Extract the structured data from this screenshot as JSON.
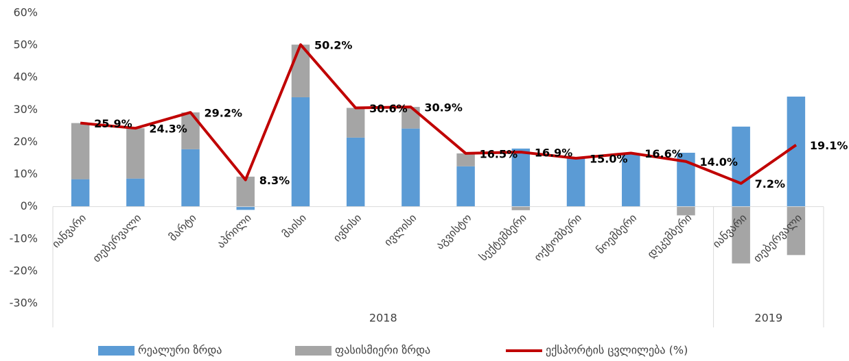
{
  "chart_data": {
    "type": "bar",
    "groups": [
      {
        "label": "2018",
        "categories": [
          "იანვარი",
          "თებერვალი",
          "მარტი",
          "აპრილი",
          "მაისი",
          "ივნისი",
          "ივლისი",
          "აგვისტო",
          "სექტემბერი",
          "ოქტომბერი",
          "ნოემბერი",
          "დეკემბერი"
        ]
      },
      {
        "label": "2019",
        "categories": [
          "იანვარი",
          "თებერვალი"
        ]
      }
    ],
    "series": [
      {
        "name": "რეალური ზრდა",
        "type": "bar",
        "color": "#5b9bd5",
        "values": [
          8.5,
          8.7,
          17.8,
          -1.0,
          33.9,
          21.4,
          24.2,
          12.5,
          18.0,
          15.0,
          16.6,
          16.7,
          24.8,
          34.1
        ]
      },
      {
        "name": "ფასისმიერი ზრდა",
        "type": "bar",
        "color": "#a5a5a5",
        "values": [
          17.4,
          15.6,
          11.4,
          9.3,
          16.3,
          9.2,
          6.7,
          4.0,
          -1.1,
          0,
          0,
          -2.7,
          -17.6,
          -15.0
        ]
      },
      {
        "name": "ექსპორტის ცვლილება (%)",
        "type": "line",
        "color": "#c00000",
        "values": [
          25.9,
          24.3,
          29.2,
          8.3,
          50.2,
          30.6,
          30.9,
          16.5,
          16.9,
          15.0,
          16.6,
          14.0,
          7.2,
          19.1
        ],
        "value_labels": [
          "25.9%",
          "24.3%",
          "29.2%",
          "8.3%",
          "50.2%",
          "30.6%",
          "30.9%",
          "16.5%",
          "16.9%",
          "15.0%",
          "16.6%",
          "14.0%",
          "7.2%",
          "19.1%"
        ]
      }
    ],
    "ylim": [
      -30,
      60
    ],
    "yticks": [
      {
        "value": -30,
        "label": "-30%"
      },
      {
        "value": -20,
        "label": "-20%"
      },
      {
        "value": -10,
        "label": "-10%"
      },
      {
        "value": 0,
        "label": "0%"
      },
      {
        "value": 10,
        "label": "10%"
      },
      {
        "value": 20,
        "label": "20%"
      },
      {
        "value": 30,
        "label": "30%"
      },
      {
        "value": 40,
        "label": "40%"
      },
      {
        "value": 50,
        "label": "50%"
      },
      {
        "value": 60,
        "label": "60%"
      }
    ],
    "legend": "bottom"
  }
}
